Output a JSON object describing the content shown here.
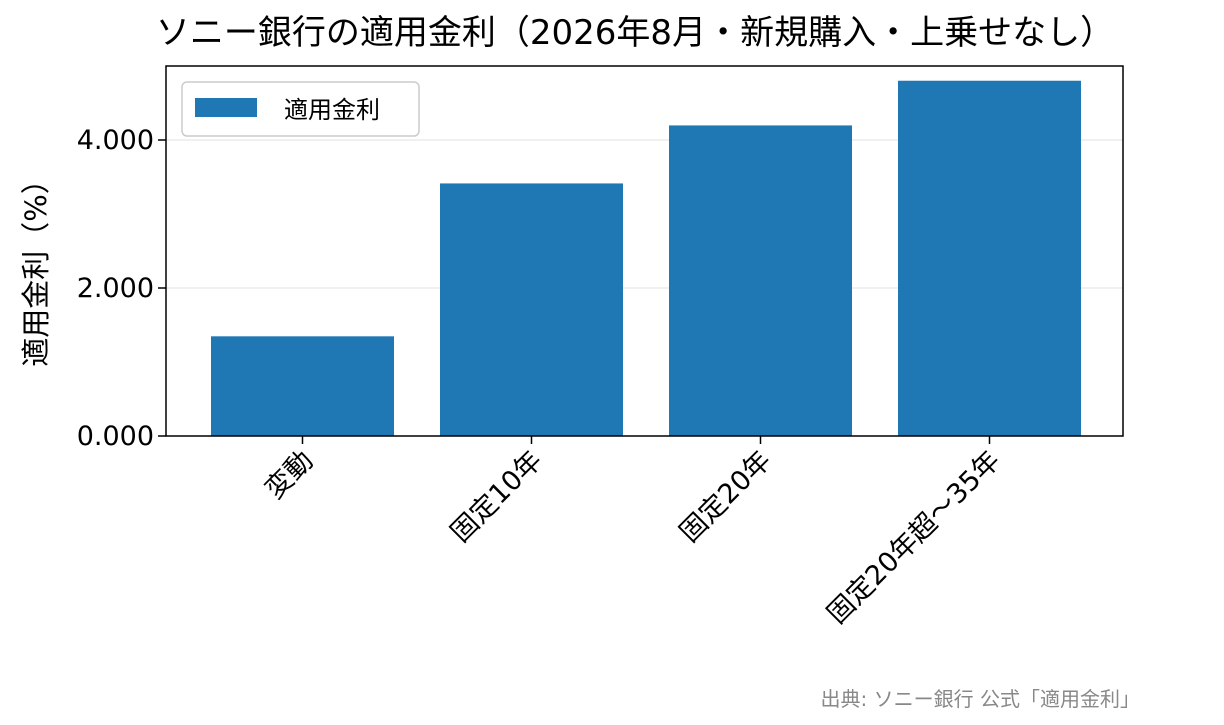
{
  "chart_data": {
    "type": "bar",
    "title": "ソニー銀行の適用金利（2026年8月・新規購入・上乗せなし）",
    "xlabel": "",
    "ylabel": "適用金利（%）",
    "categories": [
      "変動",
      "固定10年",
      "固定20年",
      "固定20年超～35年"
    ],
    "series": [
      {
        "name": "適用金利",
        "values": [
          1.347,
          3.413,
          4.197,
          4.801
        ]
      }
    ],
    "ylim": [
      0,
      5.0
    ],
    "yticks": [
      0,
      2,
      4
    ],
    "ytick_labels": [
      "0.000",
      "2.000",
      "4.000"
    ],
    "grid": "horizontal",
    "legend_position": "top-left",
    "bar_color": "#1f77b4",
    "source_note": "出典: ソニー銀行 公式「適用金利」"
  }
}
